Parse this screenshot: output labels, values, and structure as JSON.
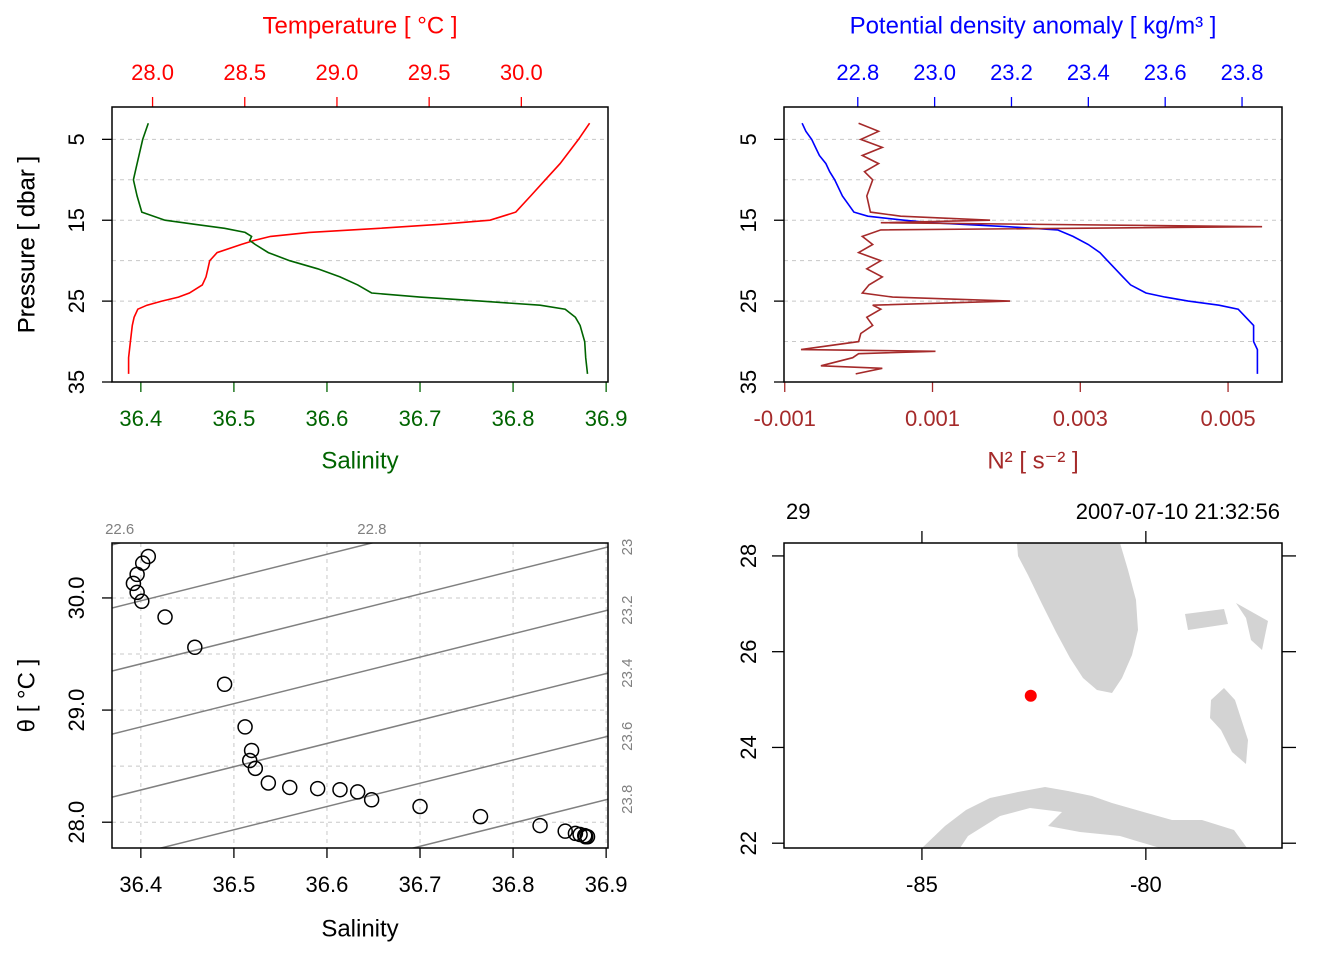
{
  "chart_data": [
    {
      "type": "profile",
      "ylabel": "Pressure [ dbar ]",
      "ylim": [
        35,
        1
      ],
      "yticks": [
        5,
        15,
        25,
        35
      ],
      "ygrid": [
        5,
        10,
        15,
        20,
        25,
        30,
        35
      ],
      "pressure": [
        3,
        5,
        8,
        10,
        12,
        14,
        15,
        15.5,
        16,
        16.5,
        17,
        17.5,
        18,
        19,
        20,
        21,
        22,
        23,
        24,
        24.5,
        25,
        25.5,
        26,
        27,
        28,
        30,
        32,
        34
      ],
      "series": [
        {
          "xlabel": "Temperature [ °C ]",
          "axis": "top",
          "color": "#ff0000",
          "xlim": [
            27.78,
            30.47
          ],
          "xticks": [
            {
              "value": 28,
              "label": "28.0"
            },
            28.5,
            {
              "value": 29,
              "label": "29.0"
            },
            29.5,
            {
              "value": 30,
              "label": "30.0"
            }
          ],
          "values": [
            30.37,
            30.31,
            30.21,
            30.13,
            30.05,
            29.97,
            29.83,
            29.56,
            29.23,
            28.85,
            28.64,
            28.55,
            28.48,
            28.35,
            28.31,
            28.3,
            28.29,
            28.27,
            28.2,
            28.14,
            28.05,
            27.97,
            27.92,
            27.9,
            27.89,
            27.88,
            27.87,
            27.87
          ]
        },
        {
          "xlabel": "Salinity",
          "axis": "bottom",
          "color": "#006400",
          "xlim": [
            36.369,
            36.902
          ],
          "xticks": [
            36.4,
            36.5,
            36.6,
            36.7,
            36.8,
            36.9
          ],
          "values": [
            36.408,
            36.402,
            36.396,
            36.392,
            36.396,
            36.401,
            36.426,
            36.458,
            36.49,
            36.512,
            36.519,
            36.517,
            36.523,
            36.537,
            36.56,
            36.59,
            36.614,
            36.633,
            36.648,
            36.7,
            36.765,
            36.829,
            36.856,
            36.867,
            36.872,
            36.877,
            36.878,
            36.88
          ]
        }
      ]
    },
    {
      "type": "profile",
      "ylabel": "Pressure [ dbar ]",
      "ylim": [
        35,
        1
      ],
      "yticks": [
        5,
        15,
        25,
        35
      ],
      "ygrid": [
        5,
        10,
        15,
        20,
        25,
        30,
        35
      ],
      "pressure": [
        3,
        4,
        5,
        6,
        7,
        8,
        9,
        10,
        12,
        14,
        14.5,
        15,
        15.3,
        15.8,
        16.2,
        17,
        18,
        19,
        20,
        21,
        22,
        23,
        24,
        24.5,
        25,
        25.5,
        26,
        27,
        28,
        29,
        30,
        31,
        31.2,
        31.5,
        32,
        33,
        33.3,
        34
      ],
      "series": [
        {
          "xlabel": "Potential density anomaly [ kg/m³ ]",
          "axis": "top",
          "color": "#0000ff",
          "xlim": [
            22.608,
            23.904
          ],
          "xticks": [
            22.8,
            {
              "value": 23,
              "label": "23.0"
            },
            23.2,
            23.4,
            23.6,
            23.8
          ],
          "values": [
            22.655,
            22.665,
            22.68,
            22.69,
            22.7,
            22.717,
            22.727,
            22.74,
            22.76,
            22.79,
            22.826,
            22.92,
            22.99,
            23.19,
            23.32,
            23.36,
            23.4,
            23.43,
            23.45,
            23.47,
            23.49,
            23.51,
            23.55,
            23.6,
            23.66,
            23.74,
            23.79,
            23.81,
            23.83,
            23.83,
            23.83,
            23.84,
            23.84,
            23.84,
            23.84,
            23.84,
            23.84,
            23.84
          ]
        },
        {
          "xlabel": "N² [ s⁻² ]",
          "axis": "bottom",
          "color": "#a52a2a",
          "xlim": [
            -0.00101,
            0.00573
          ],
          "xticks": [
            -0.001,
            0.001,
            0.003,
            0.005
          ],
          "values": [
            0,
            0.00027,
            3e-05,
            0.00032,
            5e-05,
            0.00027,
            8e-05,
            0.00019,
            0.00011,
            0.00016,
            0.00057,
            0.00178,
            0.0003,
            0.00546,
            0.0003,
            5e-05,
            0.00019,
            0,
            0.0003,
            0.00011,
            0.00032,
            0.00014,
            5e-05,
            0.00046,
            0.00205,
            0.00019,
            0.0003,
            0.00011,
            0.00019,
            3e-05,
            0,
            -0.00078,
            0.00104,
            0,
            -8e-05,
            -0.00051,
            0.00032,
            -4e-05
          ]
        }
      ]
    },
    {
      "type": "ts",
      "xlabel": "Salinity",
      "ylabel": "θ [ °C ]",
      "xlim": [
        36.369,
        36.902
      ],
      "ylim": [
        27.77,
        30.49
      ],
      "xticks": [
        36.4,
        36.5,
        36.6,
        36.7,
        36.8,
        36.9
      ],
      "yticks": [
        {
          "value": 28,
          "label": "28.0"
        },
        {
          "value": 29,
          "label": "29.0"
        },
        {
          "value": 30,
          "label": "30.0"
        }
      ],
      "ygrid": [
        28,
        28.5,
        29,
        29.5,
        30
      ],
      "grid": true,
      "isopycnals": [
        22.6,
        22.8,
        23,
        23.2,
        23.4,
        23.6,
        23.8
      ],
      "isopycnal_color": "#808080",
      "salinity": [
        36.408,
        36.402,
        36.396,
        36.392,
        36.396,
        36.401,
        36.426,
        36.458,
        36.49,
        36.512,
        36.519,
        36.517,
        36.523,
        36.537,
        36.56,
        36.59,
        36.614,
        36.633,
        36.648,
        36.7,
        36.765,
        36.829,
        36.856,
        36.867,
        36.872,
        36.877,
        36.878,
        36.88
      ],
      "theta": [
        30.37,
        30.31,
        30.21,
        30.13,
        30.05,
        29.97,
        29.83,
        29.56,
        29.23,
        28.85,
        28.64,
        28.55,
        28.48,
        28.35,
        28.31,
        28.3,
        28.29,
        28.27,
        28.2,
        28.14,
        28.05,
        27.97,
        27.92,
        27.9,
        27.89,
        27.88,
        27.87,
        27.87
      ]
    },
    {
      "type": "map",
      "station": "29",
      "time": "2007-07-10 21:32:56",
      "xlim": [
        -88.08,
        -76.96
      ],
      "ylim": [
        21.9,
        28.27
      ],
      "xticks": [
        -85,
        -80
      ],
      "yticks": [
        22,
        24,
        26,
        28
      ],
      "lon": [
        -82.57
      ],
      "lat": [
        25.08
      ],
      "color": "#ff0000"
    }
  ]
}
